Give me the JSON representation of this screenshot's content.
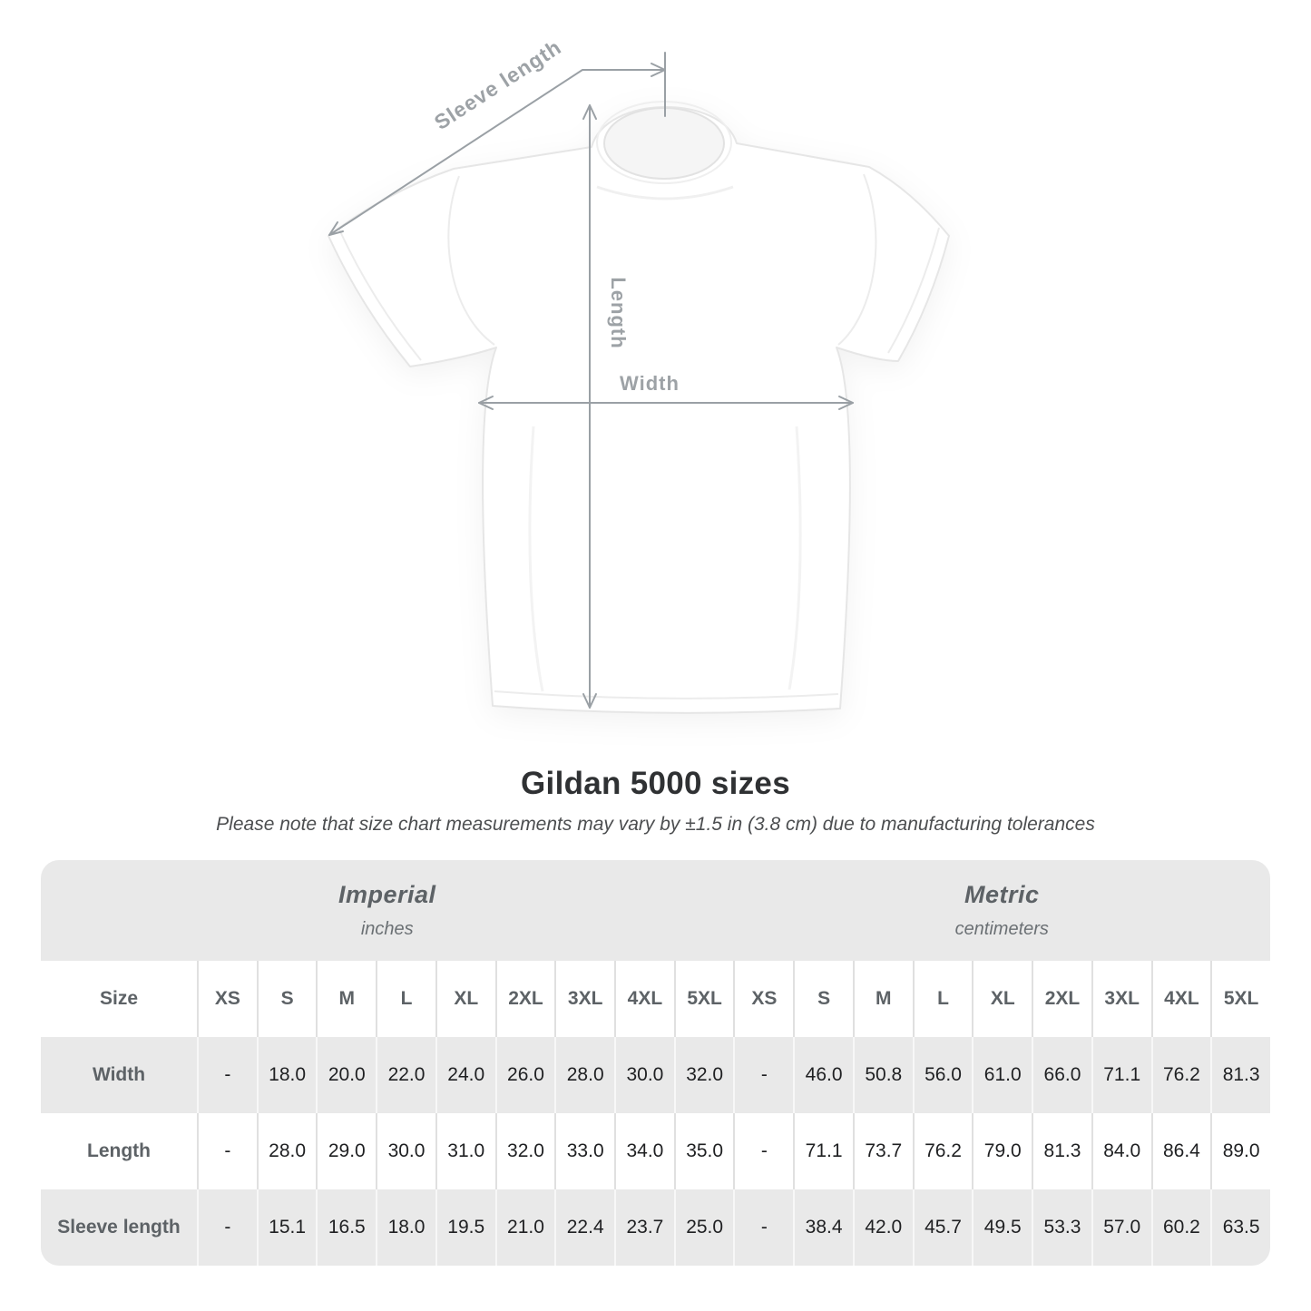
{
  "diagram": {
    "labels": {
      "sleeve_length": "Sleeve length",
      "length": "Length",
      "width": "Width"
    }
  },
  "heading": {
    "title": "Gildan 5000 sizes",
    "note": "Please note that size chart measurements may vary by ±1.5 in (3.8 cm) due to manufacturing tolerances"
  },
  "table": {
    "size_label": "Size",
    "unit_groups": [
      {
        "name": "Imperial",
        "unit": "inches"
      },
      {
        "name": "Metric",
        "unit": "centimeters"
      }
    ],
    "sizes": [
      "XS",
      "S",
      "M",
      "L",
      "XL",
      "2XL",
      "3XL",
      "4XL",
      "5XL"
    ],
    "rows": [
      {
        "label": "Width",
        "imperial": [
          "-",
          "18.0",
          "20.0",
          "22.0",
          "24.0",
          "26.0",
          "28.0",
          "30.0",
          "32.0"
        ],
        "metric": [
          "-",
          "46.0",
          "50.8",
          "56.0",
          "61.0",
          "66.0",
          "71.1",
          "76.2",
          "81.3"
        ]
      },
      {
        "label": "Length",
        "imperial": [
          "-",
          "28.0",
          "29.0",
          "30.0",
          "31.0",
          "32.0",
          "33.0",
          "34.0",
          "35.0"
        ],
        "metric": [
          "-",
          "71.1",
          "73.7",
          "76.2",
          "79.0",
          "81.3",
          "84.0",
          "86.4",
          "89.0"
        ]
      },
      {
        "label": "Sleeve length",
        "imperial": [
          "-",
          "15.1",
          "16.5",
          "18.0",
          "19.5",
          "21.0",
          "22.4",
          "23.7",
          "25.0"
        ],
        "metric": [
          "-",
          "38.4",
          "42.0",
          "45.7",
          "49.5",
          "53.3",
          "57.0",
          "60.2",
          "63.5"
        ]
      }
    ]
  },
  "colors": {
    "stripe": "#e9e9e9",
    "arrow": "#9aa0a5",
    "header_text": "#5d6266"
  }
}
